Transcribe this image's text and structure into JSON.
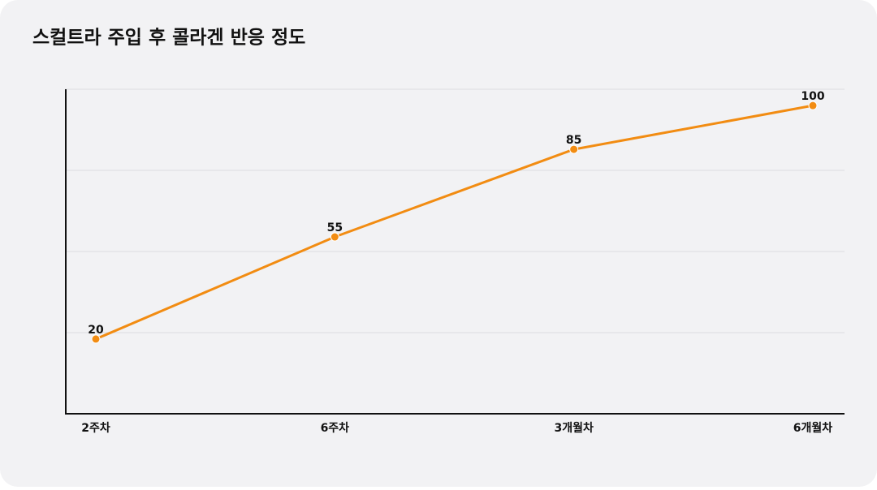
{
  "chart_data": {
    "type": "line",
    "title": "스컬트라 주입 후 콜라겐 반응 정도",
    "categories": [
      "2주차",
      "6주차",
      "3개월차",
      "6개월차"
    ],
    "series": [
      {
        "name": "콜라겐 반응",
        "color": "#f28c12",
        "values": [
          20,
          55,
          85,
          100
        ]
      }
    ],
    "ylim": [
      -5.6,
      105.6
    ],
    "grid": true
  }
}
